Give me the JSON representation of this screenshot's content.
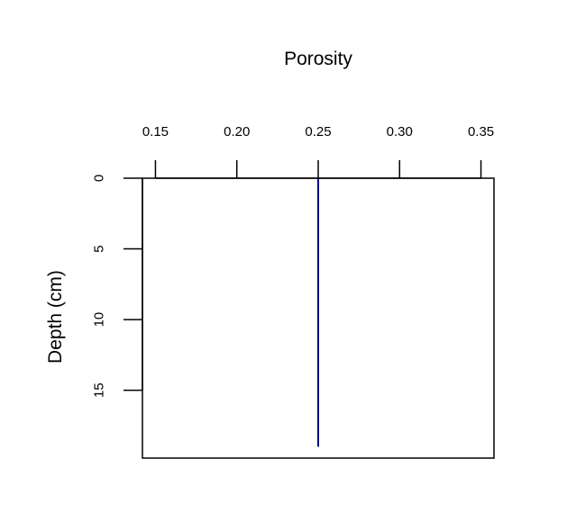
{
  "chart_data": {
    "type": "line",
    "title": "",
    "xlabel": "Porosity",
    "ylabel": "Depth (cm)",
    "x_axis_position": "top",
    "y_inverted": true,
    "xlim": [
      0.142,
      0.358
    ],
    "ylim": [
      0,
      19.8
    ],
    "xticks": [
      0.15,
      0.2,
      0.25,
      0.3,
      0.35
    ],
    "xtick_labels": [
      "0.15",
      "0.20",
      "0.25",
      "0.30",
      "0.35"
    ],
    "yticks": [
      0,
      5,
      10,
      15
    ],
    "ytick_labels": [
      "0",
      "5",
      "10",
      "15"
    ],
    "grid": false,
    "legend": "none",
    "series": [
      {
        "color": "#000080",
        "x": [
          0.25,
          0.25
        ],
        "y": [
          0,
          19
        ]
      }
    ]
  }
}
